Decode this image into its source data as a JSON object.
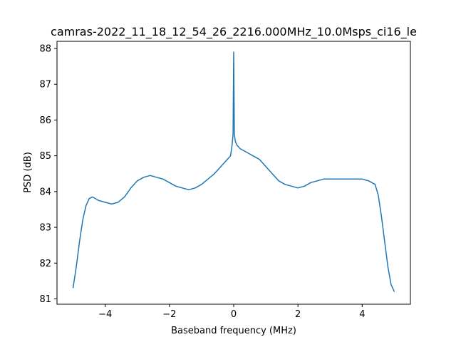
{
  "chart_data": {
    "type": "line",
    "title": "camras-2022_11_18_12_54_26_2216.000MHz_10.0Msps_ci16_le",
    "xlabel": "Baseband frequency (MHz)",
    "ylabel": "PSD (dB)",
    "xlim": [
      -5.5,
      5.5
    ],
    "ylim": [
      80.85,
      88.2
    ],
    "xticks": [
      -4,
      -2,
      0,
      2,
      4
    ],
    "xtick_labels": [
      "−4",
      "−2",
      "0",
      "2",
      "4"
    ],
    "yticks": [
      81,
      82,
      83,
      84,
      85,
      86,
      87,
      88
    ],
    "ytick_labels": [
      "81",
      "82",
      "83",
      "84",
      "85",
      "86",
      "87",
      "88"
    ],
    "grid": false,
    "series": [
      {
        "color": "#1f77b4",
        "x": [
          -5.0,
          -4.9,
          -4.8,
          -4.7,
          -4.6,
          -4.5,
          -4.4,
          -4.3,
          -4.2,
          -4.0,
          -3.8,
          -3.6,
          -3.4,
          -3.2,
          -3.0,
          -2.8,
          -2.6,
          -2.4,
          -2.2,
          -2.0,
          -1.8,
          -1.6,
          -1.4,
          -1.2,
          -1.0,
          -0.8,
          -0.6,
          -0.4,
          -0.2,
          -0.1,
          -0.05,
          -0.02,
          0.0,
          0.02,
          0.05,
          0.1,
          0.2,
          0.3,
          0.4,
          0.5,
          0.6,
          0.8,
          1.0,
          1.2,
          1.4,
          1.6,
          1.8,
          2.0,
          2.2,
          2.4,
          2.6,
          2.8,
          3.0,
          3.2,
          3.4,
          3.6,
          3.8,
          4.0,
          4.2,
          4.4,
          4.5,
          4.6,
          4.7,
          4.8,
          4.9,
          5.0
        ],
        "y": [
          81.3,
          81.9,
          82.6,
          83.2,
          83.6,
          83.8,
          83.85,
          83.8,
          83.75,
          83.7,
          83.65,
          83.7,
          83.85,
          84.1,
          84.3,
          84.4,
          84.45,
          84.4,
          84.35,
          84.25,
          84.15,
          84.1,
          84.05,
          84.1,
          84.2,
          84.35,
          84.5,
          84.7,
          84.9,
          85.0,
          85.3,
          85.6,
          87.9,
          85.6,
          85.4,
          85.3,
          85.2,
          85.15,
          85.1,
          85.05,
          85.0,
          84.9,
          84.7,
          84.5,
          84.3,
          84.2,
          84.15,
          84.1,
          84.15,
          84.25,
          84.3,
          84.35,
          84.35,
          84.35,
          84.35,
          84.35,
          84.35,
          84.35,
          84.3,
          84.2,
          83.9,
          83.3,
          82.6,
          81.9,
          81.4,
          81.2
        ]
      }
    ]
  }
}
